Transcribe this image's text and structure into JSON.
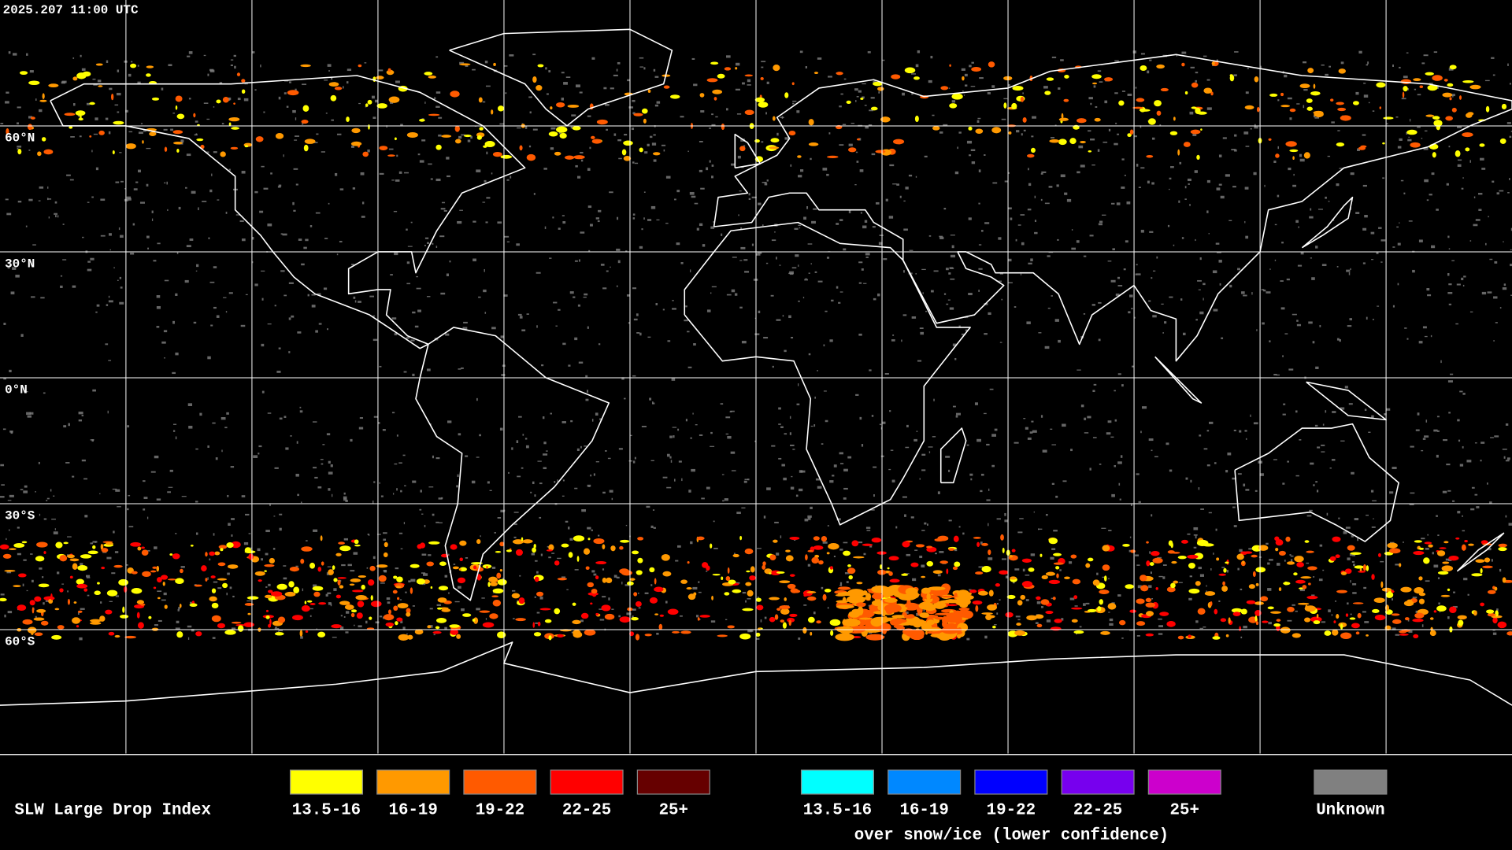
{
  "timestamp": "2025.207 11:00 UTC",
  "latitude_labels": [
    "60°N",
    "30°N",
    "0°N",
    "30°S",
    "60°S"
  ],
  "legend": {
    "title": "SLW Large Drop Index",
    "items": [
      {
        "label": "13.5-16",
        "color": "#ffff00"
      },
      {
        "label": "16-19",
        "color": "#ff9900"
      },
      {
        "label": "19-22",
        "color": "#ff5a00"
      },
      {
        "label": "22-25",
        "color": "#ff0000"
      },
      {
        "label": "25+",
        "color": "#660000"
      }
    ],
    "snow_ice_items": [
      {
        "label": "13.5-16",
        "color": "#00ffff"
      },
      {
        "label": "16-19",
        "color": "#0088ff"
      },
      {
        "label": "19-22",
        "color": "#0000ff"
      },
      {
        "label": "22-25",
        "color": "#7700ee"
      },
      {
        "label": "25+",
        "color": "#cc00cc"
      }
    ],
    "snow_ice_caption": "over snow/ice (lower confidence)",
    "unknown": {
      "label": "Unknown",
      "color": "#808080"
    }
  }
}
